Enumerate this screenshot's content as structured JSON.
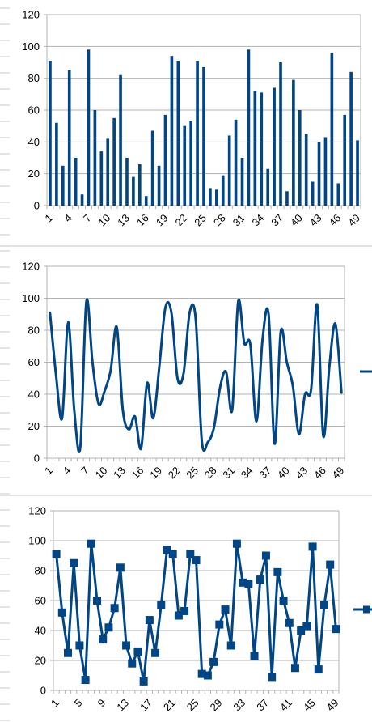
{
  "colors": {
    "series": "#004586",
    "axis": "#b3b3b3",
    "grid": "#b3b3b3",
    "background": "#ffffff",
    "frame": "#c6c6c6"
  },
  "chart_data": [
    {
      "type": "bar",
      "x": [
        1,
        2,
        3,
        4,
        5,
        6,
        7,
        8,
        9,
        10,
        11,
        12,
        13,
        14,
        15,
        16,
        17,
        18,
        19,
        20,
        21,
        22,
        23,
        24,
        25,
        26,
        27,
        28,
        29,
        30,
        31,
        32,
        33,
        34,
        35,
        36,
        37,
        38,
        39,
        40,
        41,
        42,
        43,
        44,
        45,
        46,
        47,
        48,
        49
      ],
      "values": [
        91,
        52,
        25,
        85,
        30,
        7,
        98,
        60,
        34,
        42,
        55,
        82,
        30,
        18,
        26,
        6,
        47,
        25,
        57,
        94,
        91,
        50,
        53,
        91,
        87,
        11,
        10,
        19,
        44,
        54,
        30,
        98,
        72,
        71,
        23,
        74,
        90,
        9,
        79,
        60,
        45,
        15,
        40,
        43,
        96,
        14,
        57,
        84,
        41
      ],
      "xticks": [
        "1",
        "4",
        "7",
        "10",
        "13",
        "16",
        "19",
        "22",
        "25",
        "28",
        "31",
        "34",
        "37",
        "40",
        "43",
        "46",
        "49"
      ],
      "yticks": [
        "0",
        "20",
        "40",
        "60",
        "80",
        "100",
        "120"
      ],
      "ylim": [
        0,
        120
      ],
      "grid": "horizontal",
      "legend": "none"
    },
    {
      "type": "line",
      "smooth": true,
      "x": [
        1,
        2,
        3,
        4,
        5,
        6,
        7,
        8,
        9,
        10,
        11,
        12,
        13,
        14,
        15,
        16,
        17,
        18,
        19,
        20,
        21,
        22,
        23,
        24,
        25,
        26,
        27,
        28,
        29,
        30,
        31,
        32,
        33,
        34,
        35,
        36,
        37,
        38,
        39,
        40,
        41,
        42,
        43,
        44,
        45,
        46,
        47,
        48,
        49
      ],
      "values": [
        91,
        52,
        25,
        85,
        30,
        7,
        98,
        60,
        34,
        42,
        55,
        82,
        30,
        18,
        26,
        6,
        47,
        25,
        57,
        94,
        91,
        50,
        53,
        91,
        87,
        11,
        10,
        19,
        44,
        54,
        30,
        98,
        72,
        71,
        23,
        74,
        90,
        9,
        79,
        60,
        45,
        15,
        40,
        43,
        96,
        14,
        57,
        84,
        41
      ],
      "xticks": [
        "1",
        "4",
        "7",
        "10",
        "13",
        "16",
        "19",
        "22",
        "25",
        "28",
        "31",
        "34",
        "37",
        "40",
        "43",
        "46",
        "49"
      ],
      "yticks": [
        "0",
        "20",
        "40",
        "60",
        "80",
        "100",
        "120"
      ],
      "ylim": [
        0,
        120
      ],
      "grid": "horizontal",
      "legend": "right"
    },
    {
      "type": "line",
      "markers": "square",
      "x": [
        1,
        2,
        3,
        4,
        5,
        6,
        7,
        8,
        9,
        10,
        11,
        12,
        13,
        14,
        15,
        16,
        17,
        18,
        19,
        20,
        21,
        22,
        23,
        24,
        25,
        26,
        27,
        28,
        29,
        30,
        31,
        32,
        33,
        34,
        35,
        36,
        37,
        38,
        39,
        40,
        41,
        42,
        43,
        44,
        45,
        46,
        47,
        48,
        49
      ],
      "values": [
        91,
        52,
        25,
        85,
        30,
        7,
        98,
        60,
        34,
        42,
        55,
        82,
        30,
        18,
        26,
        6,
        47,
        25,
        57,
        94,
        91,
        50,
        53,
        91,
        87,
        11,
        10,
        19,
        44,
        54,
        30,
        98,
        72,
        71,
        23,
        74,
        90,
        9,
        79,
        60,
        45,
        15,
        40,
        43,
        96,
        14,
        57,
        84,
        41
      ],
      "xticks": [
        "1",
        "5",
        "9",
        "13",
        "17",
        "21",
        "25",
        "29",
        "33",
        "37",
        "41",
        "45",
        "49"
      ],
      "yticks": [
        "0",
        "20",
        "40",
        "60",
        "80",
        "100",
        "120"
      ],
      "ylim": [
        0,
        120
      ],
      "grid": "horizontal",
      "legend": "right"
    }
  ]
}
